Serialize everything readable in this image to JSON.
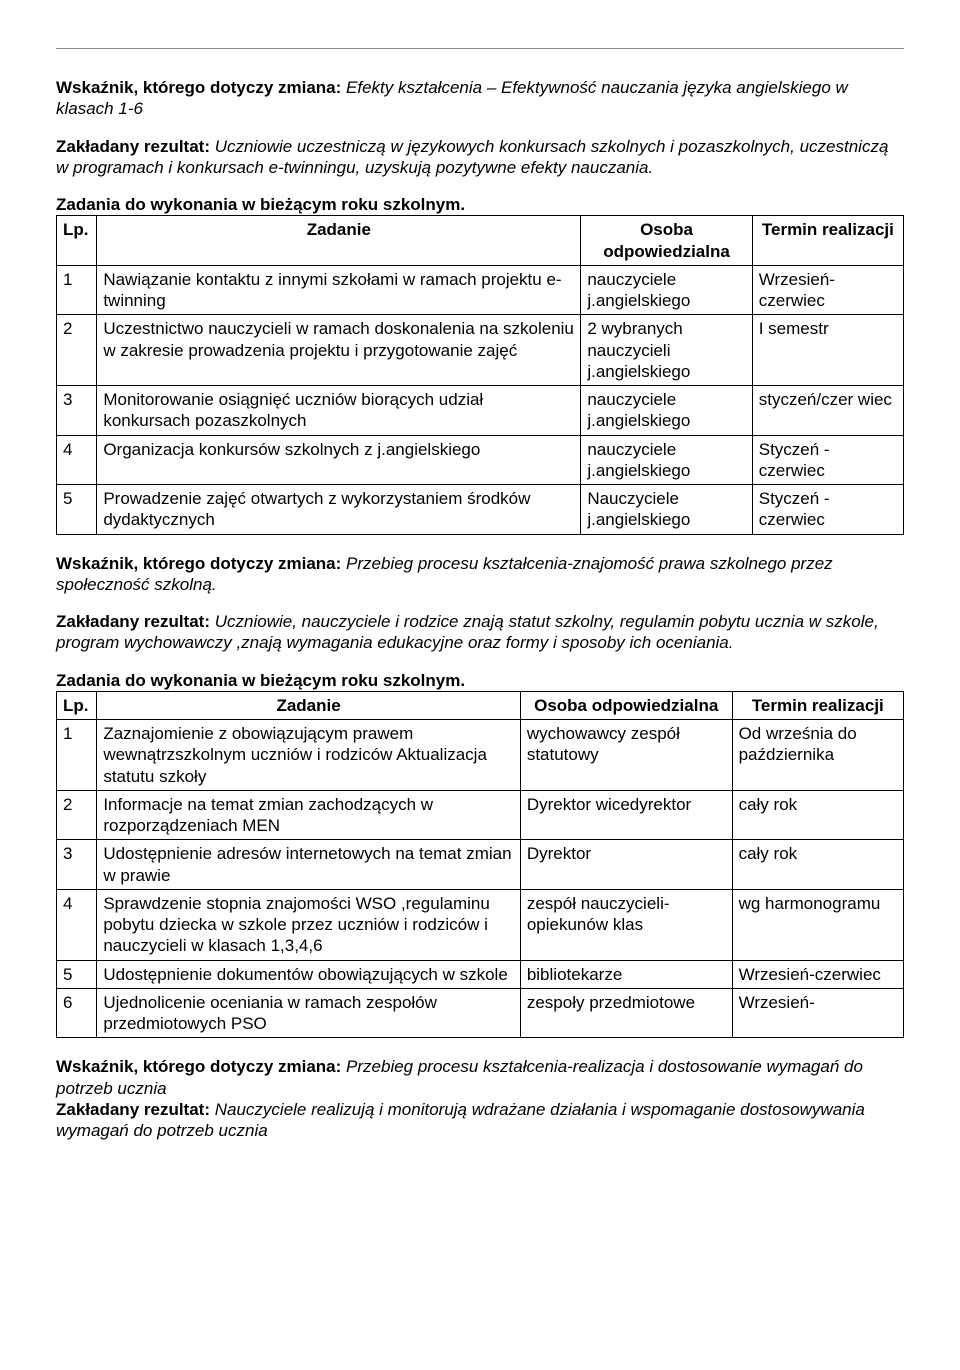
{
  "section1": {
    "indicator_label": "Wskaźnik, którego dotyczy zmiana:",
    "indicator_text": "Efekty kształcenia – Efektywność nauczania języka angielskiego w klasach 1-6",
    "result_label": "Zakładany rezultat:",
    "result_text": "Uczniowie uczestniczą w językowych konkursach szkolnych i pozaszkolnych, uczestniczą w programach i konkursach e-twinningu, uzyskują pozytywne efekty nauczania.",
    "tasks_heading": "Zadania do wykonania w bieżącym roku szkolnym.",
    "headers": {
      "lp": "Lp.",
      "task": "Zadanie",
      "resp": "Osoba odpowiedzialna",
      "term": "Termin realizacji"
    },
    "rows": [
      {
        "lp": "1",
        "task": "Nawiązanie kontaktu z innymi szkołami w ramach projektu e-twinning",
        "resp": "nauczyciele j.angielskiego",
        "term": "Wrzesień-czerwiec"
      },
      {
        "lp": "2",
        "task": "Uczestnictwo nauczycieli w ramach doskonalenia na szkoleniu w zakresie prowadzenia projektu i przygotowanie zajęć",
        "resp": "2 wybranych nauczycieli j.angielskiego",
        "term": "I semestr"
      },
      {
        "lp": "3",
        "task": "Monitorowanie osiągnięć uczniów biorących udział konkursach pozaszkolnych",
        "resp": "nauczyciele j.angielskiego",
        "term": "styczeń/czer wiec"
      },
      {
        "lp": "4",
        "task": "Organizacja konkursów szkolnych z j.angielskiego",
        "resp": "nauczyciele j.angielskiego",
        "term": "Styczeń - czerwiec"
      },
      {
        "lp": "5",
        "task": "Prowadzenie zajęć otwartych z wykorzystaniem środków dydaktycznych",
        "resp": "Nauczyciele j.angielskiego",
        "term": "Styczeń - czerwiec"
      }
    ]
  },
  "section2": {
    "indicator_label": "Wskaźnik, którego dotyczy zmiana:",
    "indicator_text": "Przebieg procesu kształcenia-znajomość prawa szkolnego przez społeczność szkolną.",
    "result_label": "Zakładany rezultat:",
    "result_text": "Uczniowie, nauczyciele i rodzice znają statut szkolny, regulamin pobytu ucznia w szkole, program wychowawczy ,znają wymagania edukacyjne oraz formy i sposoby ich oceniania.",
    "tasks_heading": "Zadania do wykonania w bieżącym roku szkolnym.",
    "headers": {
      "lp": "Lp.",
      "task": "Zadanie",
      "resp": "Osoba odpowiedzialna",
      "term": "Termin realizacji"
    },
    "rows": [
      {
        "lp": "1",
        "task": "Zaznajomienie z obowiązującym prawem wewnątrzszkolnym uczniów i rodziców Aktualizacja statutu szkoły",
        "resp": "wychowawcy zespół statutowy",
        "term": "Od września do października"
      },
      {
        "lp": "2",
        "task": "Informacje na temat zmian zachodzących w rozporządzeniach MEN",
        "resp": "Dyrektor wicedyrektor",
        "term": "cały rok"
      },
      {
        "lp": "3",
        "task": "Udostępnienie adresów internetowych na temat zmian w prawie",
        "resp": "Dyrektor",
        "term": "cały rok"
      },
      {
        "lp": "4",
        "task": "Sprawdzenie stopnia znajomości WSO ,regulaminu pobytu dziecka w szkole przez uczniów i rodziców i nauczycieli w klasach 1,3,4,6",
        "resp": " zespół nauczycieli-opiekunów klas",
        "term": "wg harmonogramu"
      },
      {
        "lp": "5",
        "task": "Udostępnienie dokumentów obowiązujących w szkole",
        "resp": "bibliotekarze",
        "term": "Wrzesień-czerwiec"
      },
      {
        "lp": "6",
        "task": "Ujednolicenie oceniania w ramach zespołów przedmiotowych PSO",
        "resp": "zespoły przedmiotowe",
        "term": "Wrzesień-"
      }
    ]
  },
  "section3": {
    "indicator_label": "Wskaźnik, którego dotyczy zmiana:",
    "indicator_text": "Przebieg procesu kształcenia-realizacja i dostosowanie wymagań do potrzeb ucznia",
    "result_label": "Zakładany rezultat:",
    "result_text": "Nauczyciele realizują i monitorują  wdrażane działania i wspomaganie dostosowywania wymagań do potrzeb ucznia"
  }
}
